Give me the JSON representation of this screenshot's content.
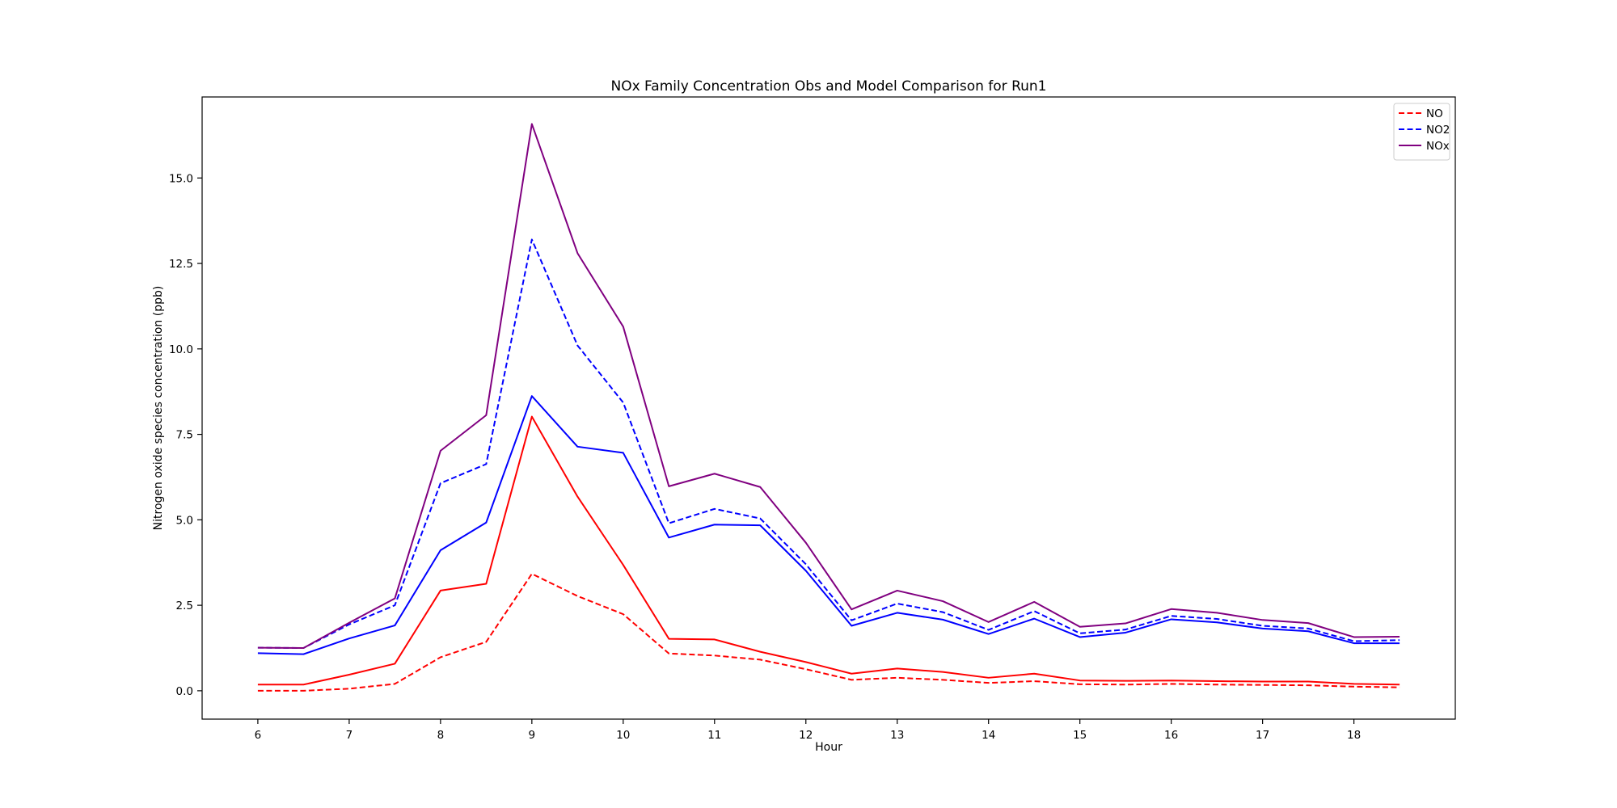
{
  "chart_data": {
    "type": "line",
    "title": "NOx Family Concentration Obs and Model Comparison for Run1",
    "xlabel": "Hour",
    "ylabel": "Nitrogen oxide species concentration (ppb)",
    "x": [
      6,
      6.5,
      7,
      7.5,
      8,
      8.5,
      9,
      9.5,
      10,
      10.5,
      11,
      11.5,
      12,
      12.5,
      13,
      13.5,
      14,
      14.5,
      15,
      15.5,
      16,
      16.5,
      17,
      17.5,
      18,
      18.5
    ],
    "xlim": [
      5.39,
      19.11
    ],
    "ylim": [
      -0.83,
      17.37
    ],
    "xticks": [
      6,
      7,
      8,
      9,
      10,
      11,
      12,
      13,
      14,
      15,
      16,
      17,
      18
    ],
    "xtick_labels": [
      "6",
      "7",
      "8",
      "9",
      "10",
      "11",
      "12",
      "13",
      "14",
      "15",
      "16",
      "17",
      "18"
    ],
    "yticks": [
      0,
      2.5,
      5,
      7.5,
      10,
      12.5,
      15
    ],
    "ytick_labels": [
      "0.0",
      "2.5",
      "5.0",
      "7.5",
      "10.0",
      "12.5",
      "15.0"
    ],
    "grid": false,
    "legend_position": "top-right",
    "series": [
      {
        "name": "NO",
        "color": "#ff0000",
        "style": "dashed",
        "legend": true,
        "values": [
          0.0,
          0.0,
          0.06,
          0.2,
          0.98,
          1.43,
          3.42,
          2.77,
          2.24,
          1.09,
          1.03,
          0.91,
          0.63,
          0.32,
          0.38,
          0.32,
          0.23,
          0.28,
          0.19,
          0.18,
          0.2,
          0.18,
          0.17,
          0.16,
          0.12,
          0.1
        ]
      },
      {
        "name": "NO2",
        "color": "#0000ff",
        "style": "dashed",
        "legend": true,
        "values": [
          1.26,
          1.25,
          1.94,
          2.5,
          6.07,
          6.63,
          13.2,
          10.1,
          8.43,
          4.9,
          5.32,
          5.04,
          3.7,
          2.06,
          2.55,
          2.3,
          1.78,
          2.33,
          1.68,
          1.79,
          2.19,
          2.1,
          1.9,
          1.82,
          1.45,
          1.48
        ]
      },
      {
        "name": "NOx",
        "color": "#800080",
        "style": "solid",
        "legend": true,
        "values": [
          1.26,
          1.25,
          1.99,
          2.7,
          7.02,
          8.06,
          16.58,
          12.8,
          10.65,
          5.98,
          6.35,
          5.96,
          4.33,
          2.38,
          2.93,
          2.62,
          2.01,
          2.6,
          1.87,
          1.97,
          2.39,
          2.28,
          2.07,
          1.98,
          1.57,
          1.58
        ]
      },
      {
        "name": "",
        "color": "#ff0000",
        "style": "solid",
        "legend": false,
        "values": [
          0.18,
          0.18,
          0.47,
          0.79,
          2.93,
          3.13,
          8.02,
          5.68,
          3.68,
          1.52,
          1.5,
          1.14,
          0.84,
          0.5,
          0.65,
          0.55,
          0.38,
          0.5,
          0.3,
          0.29,
          0.3,
          0.28,
          0.27,
          0.27,
          0.2,
          0.18
        ]
      },
      {
        "name": "",
        "color": "#0000ff",
        "style": "solid",
        "legend": false,
        "values": [
          1.1,
          1.07,
          1.53,
          1.91,
          4.11,
          4.92,
          8.62,
          7.14,
          6.96,
          4.48,
          4.86,
          4.84,
          3.51,
          1.9,
          2.28,
          2.08,
          1.66,
          2.11,
          1.57,
          1.7,
          2.09,
          2.0,
          1.82,
          1.74,
          1.39,
          1.39
        ]
      }
    ]
  }
}
